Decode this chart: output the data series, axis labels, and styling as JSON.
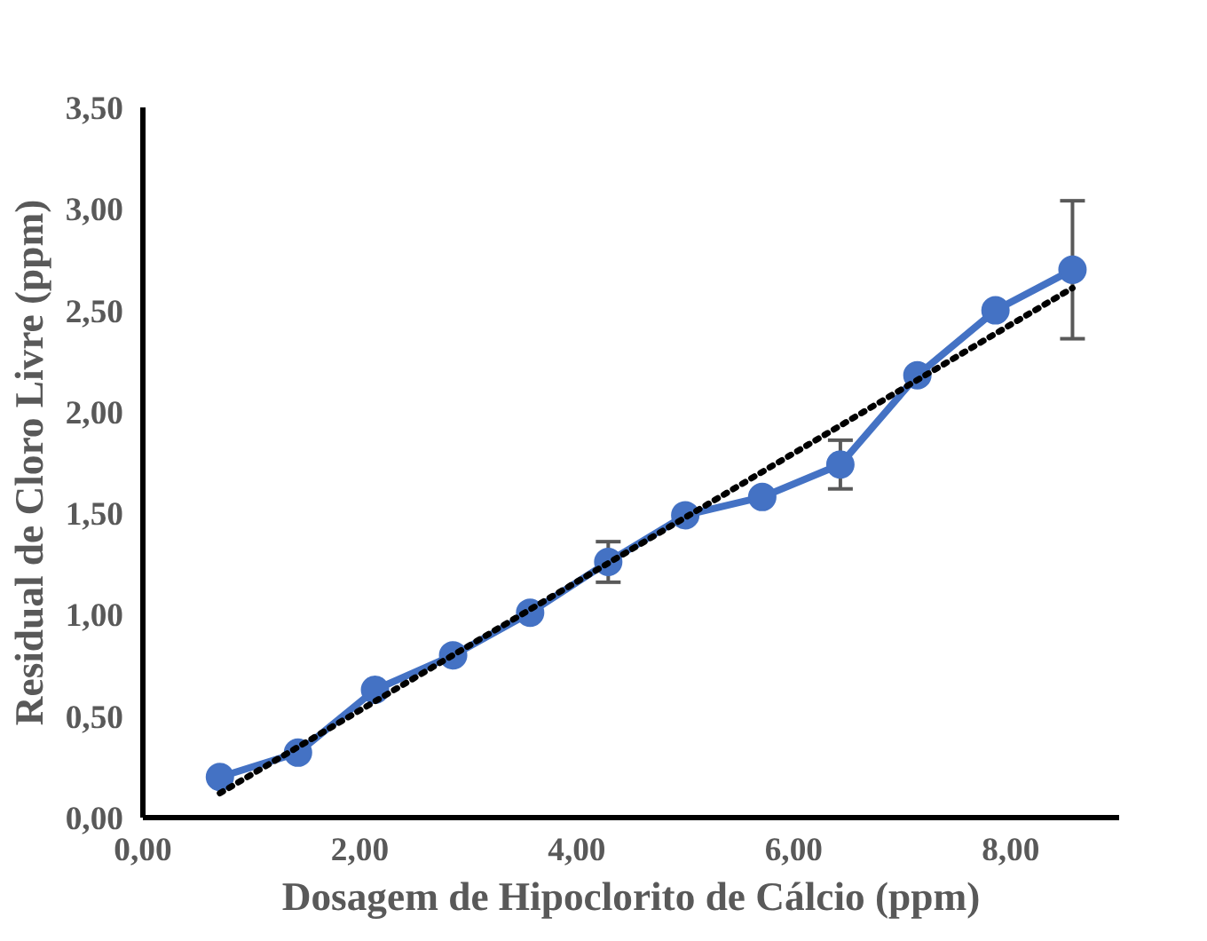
{
  "chart_data": {
    "type": "line",
    "xlabel": "Dosagem de Hipoclorito de Cálcio (ppm)",
    "ylabel": "Residual de Cloro Livre (ppm)",
    "xlim": [
      0,
      9
    ],
    "ylim": [
      0,
      3.5
    ],
    "xticks": [
      {
        "value": 0,
        "label": "0,00"
      },
      {
        "value": 2,
        "label": "2,00"
      },
      {
        "value": 4,
        "label": "4,00"
      },
      {
        "value": 6,
        "label": "6,00"
      },
      {
        "value": 8,
        "label": "8,00"
      }
    ],
    "yticks": [
      {
        "value": 0,
        "label": "0,00"
      },
      {
        "value": 0.5,
        "label": "0,50"
      },
      {
        "value": 1,
        "label": "1,00"
      },
      {
        "value": 1.5,
        "label": "1,50"
      },
      {
        "value": 2,
        "label": "2,00"
      },
      {
        "value": 2.5,
        "label": "2,50"
      },
      {
        "value": 3,
        "label": "3,00"
      },
      {
        "value": 3.5,
        "label": "3,50"
      }
    ],
    "grid": false,
    "series": [
      {
        "color": "#4472c4",
        "marker": "circle",
        "line_style": "solid",
        "x": [
          0.71,
          1.43,
          2.14,
          2.86,
          3.57,
          4.29,
          5.0,
          5.71,
          6.43,
          7.14,
          7.86,
          8.57
        ],
        "values": [
          0.2,
          0.32,
          0.63,
          0.8,
          1.01,
          1.26,
          1.49,
          1.58,
          1.74,
          2.18,
          2.5,
          2.7
        ],
        "errors": [
          null,
          null,
          null,
          null,
          null,
          0.1,
          null,
          null,
          0.12,
          null,
          null,
          0.34
        ]
      },
      {
        "color": "#000000",
        "marker": "none",
        "line_style": "dotted",
        "x": [
          0.71,
          8.57
        ],
        "values": [
          0.12,
          2.61
        ]
      }
    ]
  }
}
